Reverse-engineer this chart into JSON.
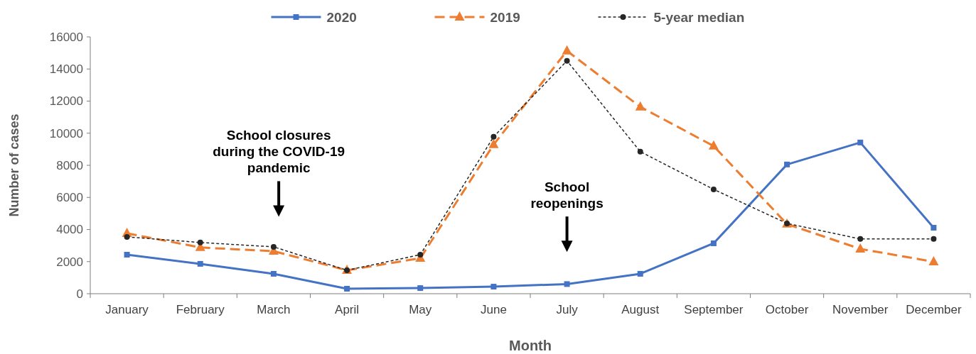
{
  "chart_data": {
    "type": "line",
    "xlabel": "Month",
    "ylabel": "Number of cases",
    "categories": [
      "January",
      "February",
      "March",
      "April",
      "May",
      "June",
      "July",
      "August",
      "September",
      "October",
      "November",
      "December"
    ],
    "ylim": [
      0,
      16000
    ],
    "yticks": [
      0,
      2000,
      4000,
      6000,
      8000,
      10000,
      12000,
      14000,
      16000
    ],
    "grid": false,
    "legend": "top",
    "series": [
      {
        "name": "2020",
        "color": "#4472c4",
        "marker": "square",
        "line_style": "solid",
        "values": [
          2430,
          1860,
          1240,
          310,
          350,
          440,
          600,
          1240,
          3140,
          8050,
          9420,
          4110
        ]
      },
      {
        "name": "2019",
        "color": "#ed7d31",
        "marker": "triangle",
        "line_style": "dashed",
        "values": [
          3760,
          2880,
          2650,
          1460,
          2210,
          9290,
          15130,
          11640,
          9200,
          4340,
          2790,
          1990
        ]
      },
      {
        "name": "5-year median",
        "color": "#262626",
        "marker": "circle",
        "line_style": "dotted",
        "values": [
          3540,
          3190,
          2920,
          1460,
          2430,
          9780,
          14510,
          8850,
          6500,
          4380,
          3410,
          3410
        ]
      }
    ],
    "annotations": [
      "School closures\nduring the COVID-19\npandemic",
      "School\nreopenings"
    ]
  }
}
